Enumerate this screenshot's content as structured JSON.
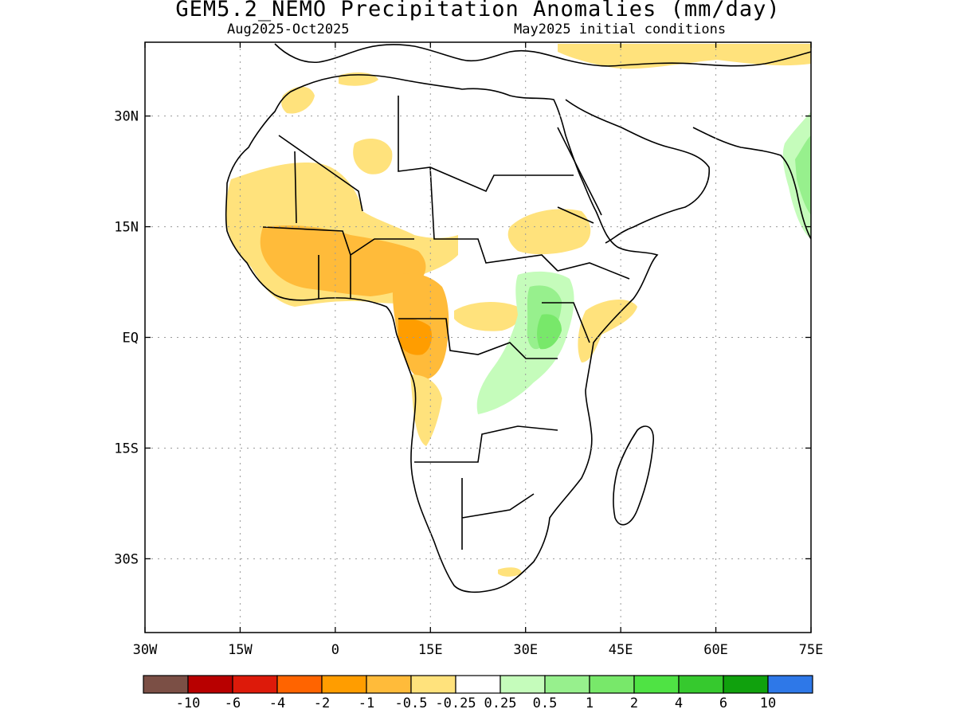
{
  "title": "GEM5.2_NEMO Precipitation Anomalies (mm/day)",
  "subtitle_left": "Aug2025-Oct2025",
  "subtitle_right": "May2025 initial conditions",
  "map": {
    "lon_range": [
      -30,
      75
    ],
    "lat_range": [
      -40,
      40
    ],
    "lat_ticks": [
      {
        "value": 30,
        "label": "30N"
      },
      {
        "value": 15,
        "label": "15N"
      },
      {
        "value": 0,
        "label": "EQ"
      },
      {
        "value": -15,
        "label": "15S"
      },
      {
        "value": -30,
        "label": "30S"
      }
    ],
    "lon_ticks": [
      {
        "value": -30,
        "label": "30W"
      },
      {
        "value": -15,
        "label": "15W"
      },
      {
        "value": 0,
        "label": "0"
      },
      {
        "value": 15,
        "label": "15E"
      },
      {
        "value": 30,
        "label": "30E"
      },
      {
        "value": 45,
        "label": "45E"
      },
      {
        "value": 60,
        "label": "60E"
      },
      {
        "value": 75,
        "label": "75E"
      }
    ],
    "grid": "dotted"
  },
  "colorbar": {
    "colors": [
      "#7b4f45",
      "#b80000",
      "#dd1a0a",
      "#ff6400",
      "#ff9d00",
      "#ffbb3a",
      "#ffe27c",
      "#ffffff",
      "#c5fcbb",
      "#97f08d",
      "#78e86a",
      "#4fe344",
      "#36c92e",
      "#10a10d",
      "#2e78e8"
    ],
    "labels": [
      "-10",
      "-6",
      "-4",
      "-2",
      "-1",
      "-0.5",
      "-0.25",
      "0.25",
      "0.5",
      "1",
      "2",
      "4",
      "6",
      "10"
    ]
  }
}
